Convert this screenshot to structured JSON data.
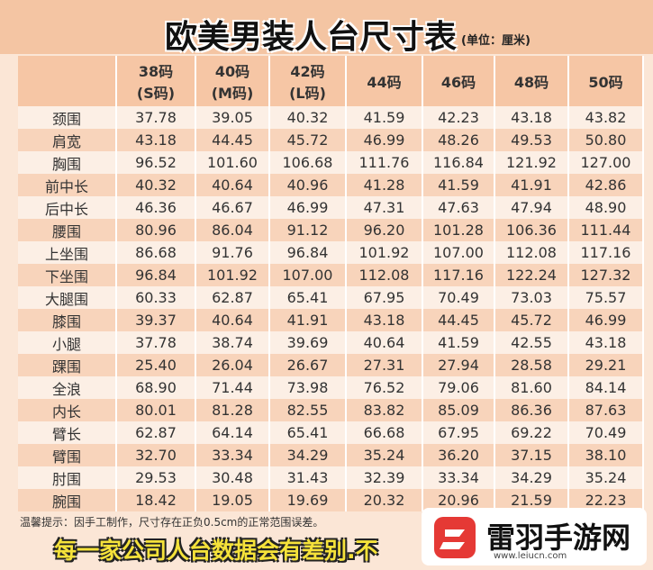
{
  "header": {
    "title": "欧美男装人台尺寸表",
    "unit": "(单位：厘米)"
  },
  "table": {
    "columns": [
      [
        "38码",
        "(S码)"
      ],
      [
        "40码",
        "(M码)"
      ],
      [
        "42码",
        "(L码)"
      ],
      [
        "44码"
      ],
      [
        "46码"
      ],
      [
        "48码"
      ],
      [
        "50码"
      ]
    ],
    "rows": [
      [
        "颈围",
        "37.78",
        "39.05",
        "40.32",
        "41.59",
        "42.23",
        "43.18",
        "43.82"
      ],
      [
        "肩宽",
        "43.18",
        "44.45",
        "45.72",
        "46.99",
        "48.26",
        "49.53",
        "50.80"
      ],
      [
        "胸围",
        "96.52",
        "101.60",
        "106.68",
        "111.76",
        "116.84",
        "121.92",
        "127.00"
      ],
      [
        "前中长",
        "40.32",
        "40.64",
        "40.96",
        "41.28",
        "41.59",
        "41.91",
        "42.86"
      ],
      [
        "后中长",
        "46.36",
        "46.67",
        "46.99",
        "47.31",
        "47.63",
        "47.94",
        "48.90"
      ],
      [
        "腰围",
        "80.96",
        "86.04",
        "91.12",
        "96.20",
        "101.28",
        "106.36",
        "111.44"
      ],
      [
        "上坐围",
        "86.68",
        "91.76",
        "96.84",
        "101.92",
        "107.00",
        "112.08",
        "117.16"
      ],
      [
        "下坐围",
        "96.84",
        "101.92",
        "107.00",
        "112.08",
        "117.16",
        "122.24",
        "127.32"
      ],
      [
        "大腿围",
        "60.33",
        "62.87",
        "65.41",
        "67.95",
        "70.49",
        "73.03",
        "75.57"
      ],
      [
        "膝围",
        "39.37",
        "40.64",
        "41.91",
        "43.18",
        "44.45",
        "45.72",
        "46.99"
      ],
      [
        "小腿",
        "37.78",
        "38.74",
        "39.69",
        "40.64",
        "41.59",
        "42.55",
        "43.18"
      ],
      [
        "踝围",
        "25.40",
        "26.04",
        "26.67",
        "27.31",
        "27.94",
        "28.58",
        "29.21"
      ],
      [
        "全浪",
        "68.90",
        "71.44",
        "73.98",
        "76.52",
        "79.06",
        "81.60",
        "84.14"
      ],
      [
        "内长",
        "80.01",
        "81.28",
        "82.55",
        "83.82",
        "85.09",
        "86.36",
        "87.63"
      ],
      [
        "臂长",
        "62.87",
        "64.14",
        "65.41",
        "66.68",
        "67.95",
        "69.22",
        "70.49"
      ],
      [
        "臂围",
        "32.70",
        "33.34",
        "34.29",
        "35.24",
        "36.20",
        "37.15",
        "38.10"
      ],
      [
        "肘围",
        "29.53",
        "30.48",
        "31.43",
        "32.39",
        "33.34",
        "34.29",
        "35.24"
      ],
      [
        "腕围",
        "18.42",
        "19.05",
        "19.69",
        "20.32",
        "20.96",
        "21.59",
        "22.23"
      ]
    ]
  },
  "footer": {
    "note": "温馨提示：因手工制作，尺寸存在正负0.5cm的正常范围误差。",
    "caption": "每一家公司人台数据会有差别.不"
  },
  "watermark": {
    "name": "雷羽手游网",
    "url": "www.leiucn.com"
  }
}
